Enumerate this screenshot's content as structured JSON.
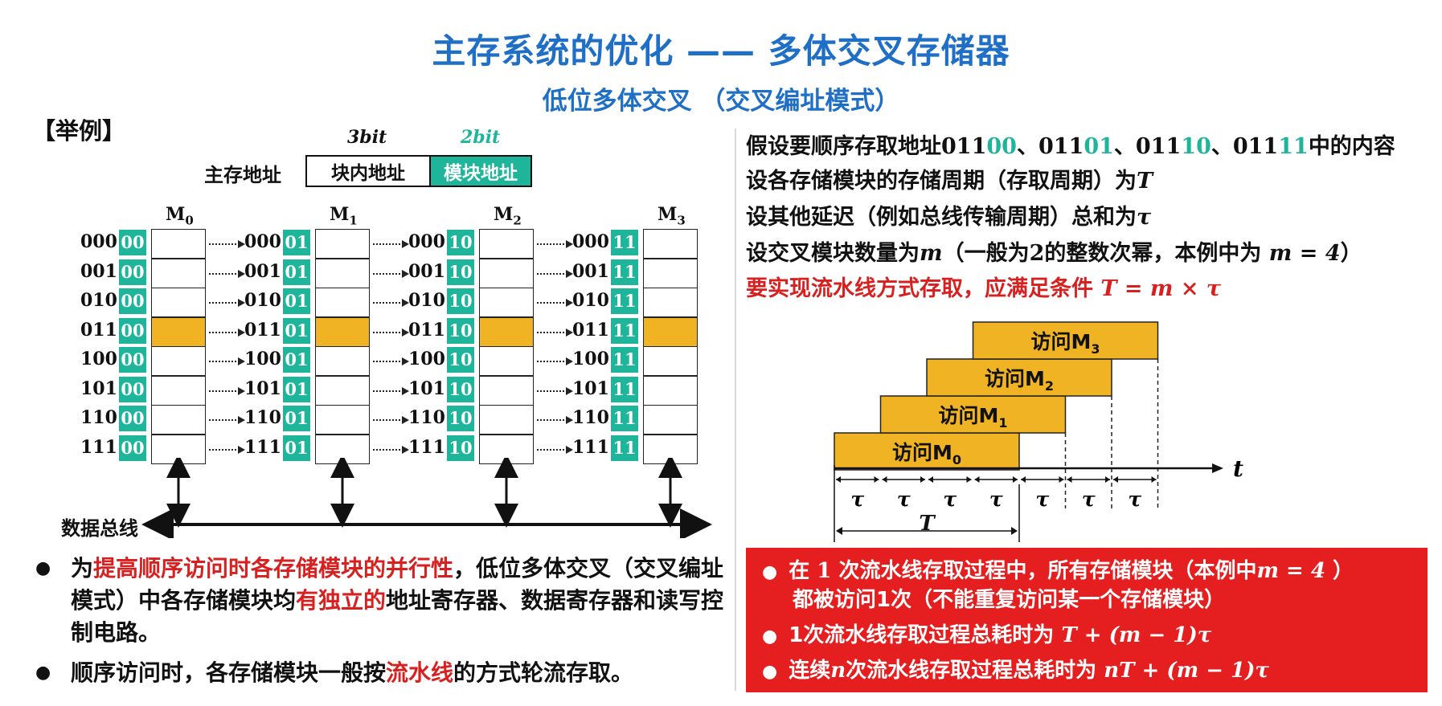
{
  "header": {
    "title": "主存系统的优化 —— 多体交叉存储器",
    "subtitle": "低位多体交叉 （交叉编址模式）"
  },
  "example_label": "【举例】",
  "address_format": {
    "label": "主存地址",
    "high_bits": "3bit",
    "low_bits": "2bit",
    "high_field": "块内地址",
    "low_field": "模块地址"
  },
  "modules": [
    {
      "name": "M",
      "sub": "0",
      "low": "00"
    },
    {
      "name": "M",
      "sub": "1",
      "low": "01"
    },
    {
      "name": "M",
      "sub": "2",
      "low": "10"
    },
    {
      "name": "M",
      "sub": "3",
      "low": "11"
    }
  ],
  "block_addresses": [
    "000",
    "001",
    "010",
    "011",
    "100",
    "101",
    "110",
    "111"
  ],
  "highlighted_row": 3,
  "bus_label": "数据总线",
  "left_bullets": [
    {
      "parts": [
        [
          "为",
          ""
        ],
        [
          "提高顺序访问时各存储模块的并行性",
          "red"
        ],
        [
          "，低位多体交叉（交叉编址模式）中各存储模块均",
          ""
        ],
        [
          "有独立的",
          "red"
        ],
        [
          "地址寄存器、数据寄存器和读写控制电路。",
          ""
        ]
      ]
    },
    {
      "parts": [
        [
          "顺序访问时，各存储模块一般按",
          ""
        ],
        [
          "流水线",
          "red"
        ],
        [
          "的方式轮流存取。",
          ""
        ]
      ]
    }
  ],
  "right_lines": {
    "l1_prefix": "假设要顺序存取地址",
    "addrs": [
      {
        "hi": "011",
        "lo": "00"
      },
      {
        "hi": "011",
        "lo": "01"
      },
      {
        "hi": "011",
        "lo": "10"
      },
      {
        "hi": "011",
        "lo": "11"
      }
    ],
    "l1_sep": "、",
    "l1_suffix": "中的内容",
    "l2_text": "设各存储模块的存储周期（存取周期）为",
    "l2_sym": "T",
    "l3_text": "设其他延迟（例如总线传输周期）总和为",
    "l3_sym": "τ",
    "l4_text_a": "设交叉模块数量为",
    "l4_sym": "m",
    "l4_text_b": "（一般为",
    "l4_two": "2",
    "l4_text_c": "的整数次幂，本例中为",
    "l4_eq": "m = 4",
    "l4_text_d": "）",
    "l5_text": "要实现流水线方式存取，应满足条件",
    "l5_eq": "T = m × τ"
  },
  "timing": {
    "bars": [
      {
        "label": "访问M",
        "sub": "0",
        "start_tau": 0
      },
      {
        "label": "访问M",
        "sub": "1",
        "start_tau": 1
      },
      {
        "label": "访问M",
        "sub": "2",
        "start_tau": 2
      },
      {
        "label": "访问M",
        "sub": "3",
        "start_tau": 3
      }
    ],
    "bar_len_tau": 4,
    "tau_label": "τ",
    "tau_count": 7,
    "T_label": "T",
    "axis_label": "t",
    "bar_color": "#f0b323"
  },
  "red_box": {
    "b1_a": "在",
    "b1_num": "1",
    "b1_b": "次流水线存取过程中，所有存储模块（本例中",
    "b1_eq": "m = 4",
    "b1_c": "）",
    "b1_line2": "都被访问1次（不能重复访问某一个存储模块）",
    "b2_a": "1次流水线存取过程总耗时为",
    "b2_eq": "T + (m − 1)τ",
    "b3_a": "连续",
    "b3_n": "n",
    "b3_b": "次流水线存取过程总耗时为",
    "b3_eq": "nT + (m − 1)τ"
  },
  "colors": {
    "title": "#1f6fc7",
    "teal": "#1fb59a",
    "highlight": "#f0b323",
    "red": "#d72020",
    "redbox": "#e51f1f"
  }
}
